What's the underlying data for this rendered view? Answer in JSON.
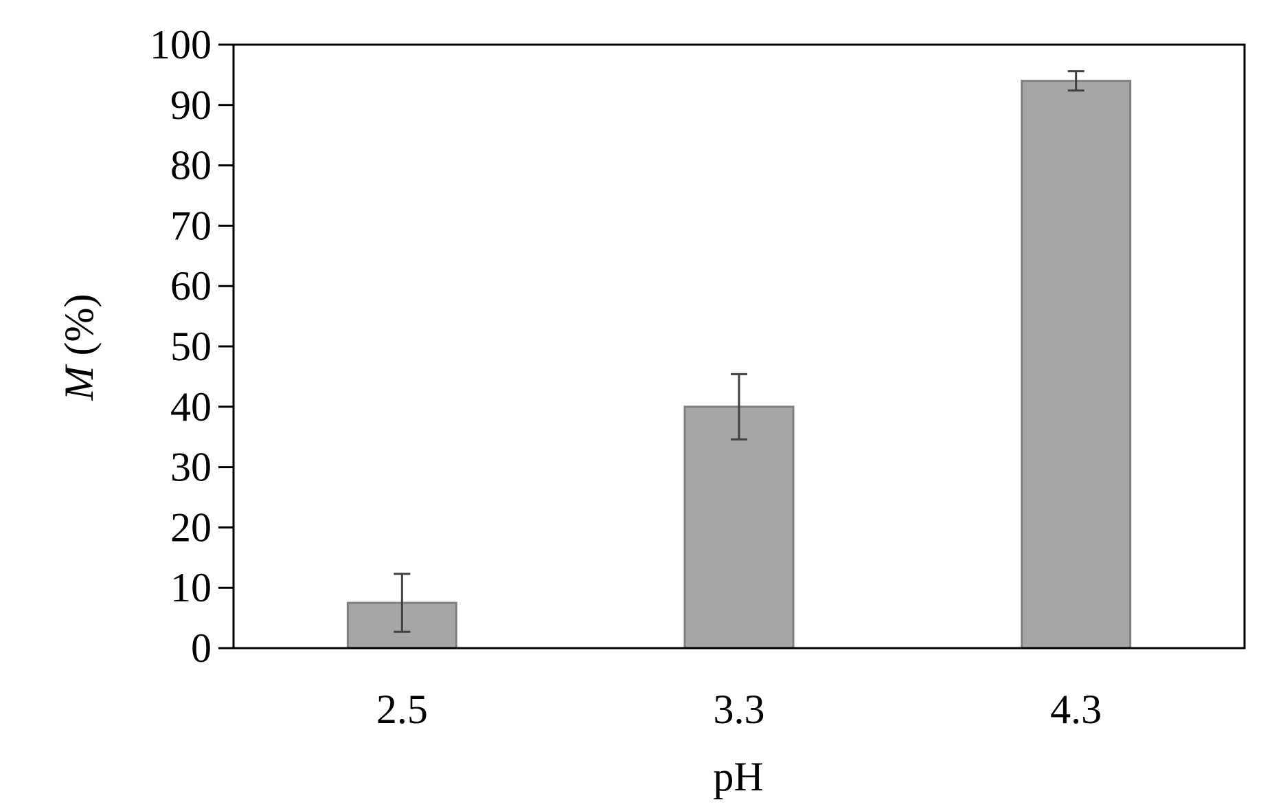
{
  "chart_data": {
    "type": "bar",
    "categories": [
      "2.5",
      "3.3",
      "4.3"
    ],
    "series": [
      {
        "values": [
          7.5,
          40,
          94
        ],
        "error": [
          4.8,
          5.4,
          1.6
        ]
      }
    ],
    "title": "",
    "xlabel": "pH",
    "ylabel": {
      "symbol": "M",
      "unit": " (%)"
    },
    "ylim": [
      0,
      100
    ],
    "yticks": [
      0,
      10,
      20,
      30,
      40,
      50,
      60,
      70,
      80,
      90,
      100
    ],
    "grid": false,
    "legend": "none",
    "colors": {
      "bar_fill": "#a6a6a6",
      "bar_stroke": "#7f7f7f",
      "error_bar": "#404040",
      "axis": "#000000"
    }
  }
}
